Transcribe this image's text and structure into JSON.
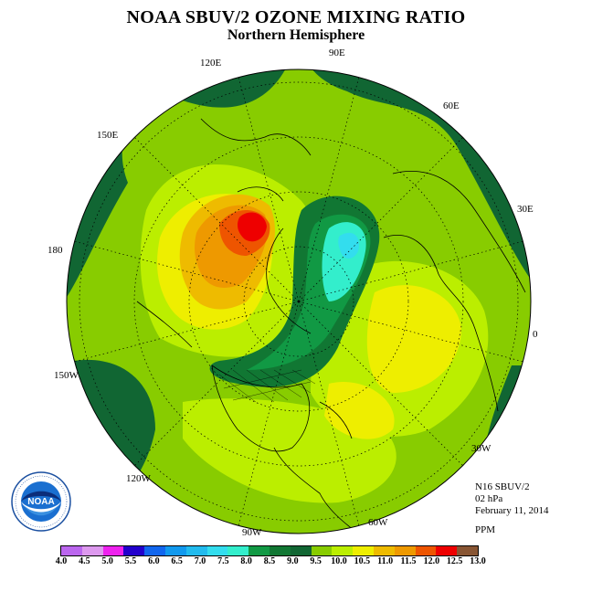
{
  "title": "NOAA SBUV/2 OZONE MIXING RATIO",
  "subtitle": "Northern Hemisphere",
  "lon_labels": [
    "90E",
    "60E",
    "30E",
    "0",
    "30W",
    "60W",
    "90W",
    "120W",
    "150W",
    "180",
    "150E",
    "120E"
  ],
  "info": {
    "satellite": "N16 SBUV/2",
    "level": "02 hPa",
    "date": "February 11, 2014"
  },
  "units": "PPM",
  "colorbar": {
    "labels": [
      "4.0",
      "4.5",
      "5.0",
      "5.5",
      "6.0",
      "6.5",
      "7.0",
      "7.5",
      "8.0",
      "8.5",
      "9.0",
      "9.5",
      "10.0",
      "10.5",
      "11.0",
      "11.5",
      "12.0",
      "12.5",
      "13.0"
    ],
    "colors": [
      "#bb66ee",
      "#dd99ee",
      "#ee22ee",
      "#2200cc",
      "#1166ee",
      "#1199ee",
      "#22bbee",
      "#33ddee",
      "#33eecc",
      "#119944",
      "#117733",
      "#116633",
      "#88cc00",
      "#bbee00",
      "#eeee00",
      "#eebb00",
      "#ee9900",
      "#ee5500",
      "#ee0000",
      "#885533"
    ]
  },
  "logo": {
    "text": "NOAA",
    "ring_text": "NATIONAL OCEANIC AND ATMOSPHERIC ADMINISTRATION · U.S. DEPARTMENT OF COMMERCE"
  }
}
